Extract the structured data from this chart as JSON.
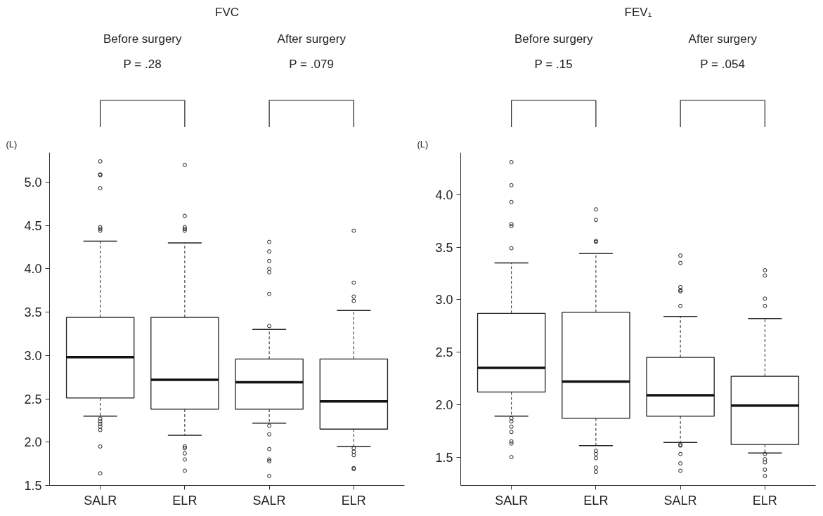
{
  "chart_data": [
    {
      "type": "box",
      "title": "FVC",
      "ylabel": "(L)",
      "categories": [
        "SALR",
        "ELR",
        "SALR",
        "ELR"
      ],
      "annotations": [
        "Before surgery",
        "P = .28",
        "After surgery",
        "P = .079"
      ],
      "ylim": [
        1.5,
        5.34
      ],
      "yticks": [
        1.5,
        {
          "value": 2.0,
          "label": "2.0"
        },
        2.5,
        {
          "value": 3.0,
          "label": "3.0"
        },
        3.5,
        {
          "value": 4.0,
          "label": "4.0"
        },
        4.5,
        {
          "value": 5.0,
          "label": "5.0"
        }
      ],
      "grid": false,
      "boxes": [
        {
          "low": 2.3,
          "q1": 2.51,
          "median": 2.98,
          "q3": 3.44,
          "high": 4.32,
          "outliers": [
            5.24,
            5.09,
            5.08,
            4.93,
            4.48,
            4.46,
            4.44,
            2.27,
            2.24,
            2.21,
            2.18,
            2.14,
            1.95,
            1.64
          ]
        },
        {
          "low": 2.08,
          "q1": 2.38,
          "median": 2.72,
          "q3": 3.44,
          "high": 4.3,
          "outliers": [
            5.2,
            4.61,
            4.48,
            4.46,
            4.44,
            1.95,
            1.93,
            1.87,
            1.8,
            1.67
          ]
        },
        {
          "low": 2.22,
          "q1": 2.38,
          "median": 2.69,
          "q3": 2.96,
          "high": 3.3,
          "outliers": [
            4.31,
            4.2,
            4.09,
            4.0,
            3.96,
            3.71,
            3.34,
            2.19,
            2.09,
            1.92,
            1.8,
            1.78,
            1.61
          ]
        },
        {
          "low": 1.95,
          "q1": 2.15,
          "median": 2.47,
          "q3": 2.96,
          "high": 3.52,
          "outliers": [
            4.44,
            3.84,
            3.68,
            3.63,
            1.93,
            1.89,
            1.85,
            1.7,
            1.69
          ]
        }
      ]
    },
    {
      "type": "box",
      "title": "FEV₁",
      "ylabel": "(L)",
      "categories": [
        "SALR",
        "ELR",
        "SALR",
        "ELR"
      ],
      "annotations": [
        "Before surgery",
        "P = .15",
        "After surgery",
        "P = .054"
      ],
      "ylim": [
        1.23,
        4.4
      ],
      "yticks": [
        1.5,
        {
          "value": 2.0,
          "label": "2.0"
        },
        2.5,
        {
          "value": 3.0,
          "label": "3.0"
        },
        3.5,
        {
          "value": 4.0,
          "label": "4.0"
        }
      ],
      "grid": false,
      "boxes": [
        {
          "low": 1.89,
          "q1": 2.12,
          "median": 2.35,
          "q3": 2.87,
          "high": 3.35,
          "outliers": [
            4.31,
            4.09,
            3.93,
            3.72,
            3.7,
            3.49,
            1.87,
            1.84,
            1.79,
            1.74,
            1.65,
            1.63,
            1.5
          ]
        },
        {
          "low": 1.61,
          "q1": 1.87,
          "median": 2.22,
          "q3": 2.88,
          "high": 3.44,
          "outliers": [
            3.86,
            3.76,
            3.56,
            3.55,
            1.56,
            1.53,
            1.49,
            1.4,
            1.36
          ]
        },
        {
          "low": 1.64,
          "q1": 1.89,
          "median": 2.09,
          "q3": 2.45,
          "high": 2.84,
          "outliers": [
            3.42,
            3.35,
            3.12,
            3.09,
            3.08,
            2.94,
            1.62,
            1.61,
            1.53,
            1.44,
            1.37
          ]
        },
        {
          "low": 1.54,
          "q1": 1.62,
          "median": 1.99,
          "q3": 2.27,
          "high": 2.82,
          "outliers": [
            3.28,
            3.23,
            3.01,
            2.94,
            1.53,
            1.48,
            1.45,
            1.38,
            1.32
          ]
        }
      ]
    }
  ]
}
